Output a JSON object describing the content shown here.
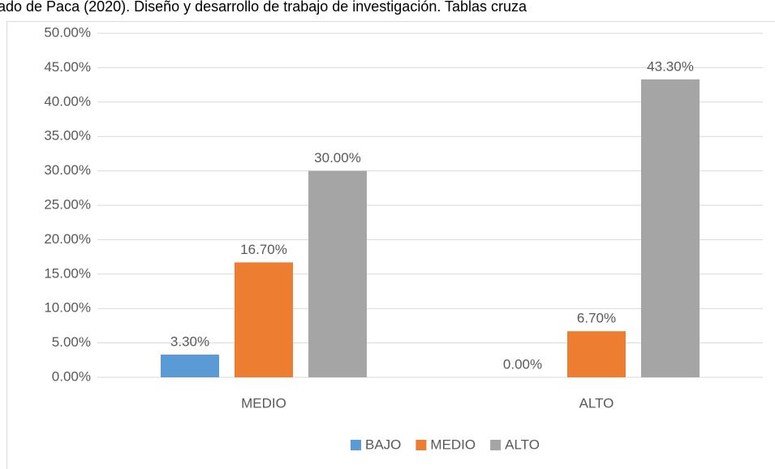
{
  "chart_data": {
    "type": "bar",
    "title": "ado de Paca (2020). Diseño y desarrollo de trabajo de investigación. Tablas cruza",
    "categories": [
      "MEDIO",
      "ALTO"
    ],
    "series": [
      {
        "name": "BAJO",
        "color": "#5b9bd5",
        "values": [
          3.3,
          0
        ],
        "value_labels": [
          "3.30%",
          "0.00%"
        ]
      },
      {
        "name": "MEDIO",
        "color": "#ed7d31",
        "values": [
          16.7,
          6.7
        ],
        "value_labels": [
          "16.70%",
          "6.70%"
        ]
      },
      {
        "name": "ALTO",
        "color": "#a5a5a5",
        "values": [
          30,
          43.3
        ],
        "value_labels": [
          "30.00%",
          "43.30%"
        ]
      }
    ],
    "ylim": [
      0,
      50
    ],
    "yticks": [
      {
        "value": 0,
        "label": "0.00%"
      },
      {
        "value": 5,
        "label": "5.00%"
      },
      {
        "value": 10,
        "label": "10.00%"
      },
      {
        "value": 15,
        "label": "15.00%"
      },
      {
        "value": 20,
        "label": "20.00%"
      },
      {
        "value": 25,
        "label": "25.00%"
      },
      {
        "value": 30,
        "label": "30.00%"
      },
      {
        "value": 35,
        "label": "35.00%"
      },
      {
        "value": 40,
        "label": "40.00%"
      },
      {
        "value": 45,
        "label": "45.00%"
      },
      {
        "value": 50,
        "label": "50.00%"
      }
    ],
    "grid": true,
    "legend": "bottom"
  }
}
